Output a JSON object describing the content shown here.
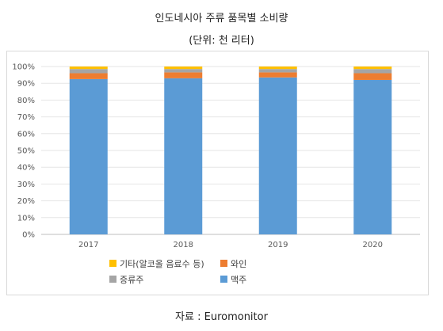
{
  "header": {
    "title": "인도네시아 주류 품목별 소비량",
    "subtitle": "(단위: 천 리터)"
  },
  "source": "자료 : Euromonitor",
  "chart_data": {
    "type": "bar",
    "stacked": true,
    "categories": [
      "2017",
      "2018",
      "2019",
      "2020"
    ],
    "ylim": [
      0,
      100
    ],
    "yticks": [
      "0%",
      "10%",
      "20%",
      "30%",
      "40%",
      "50%",
      "60%",
      "70%",
      "80%",
      "90%",
      "100%"
    ],
    "grid": true,
    "legend_position": "bottom",
    "series": [
      {
        "name": "맥주",
        "color": "#5b9bd5",
        "values": [
          92.5,
          93.0,
          93.5,
          92.0
        ]
      },
      {
        "name": "와인",
        "color": "#ed7d31",
        "values": [
          3.5,
          3.5,
          3.0,
          4.0
        ]
      },
      {
        "name": "증류주",
        "color": "#a5a5a5",
        "values": [
          2.5,
          2.0,
          2.0,
          2.5
        ]
      },
      {
        "name": "기타(알코올 음료수 등)",
        "color": "#ffc000",
        "values": [
          1.5,
          1.5,
          1.5,
          1.5
        ]
      }
    ],
    "legend_order": [
      "기타(알코올 음료수 등)",
      "와인",
      "증류주",
      "맥주"
    ]
  }
}
